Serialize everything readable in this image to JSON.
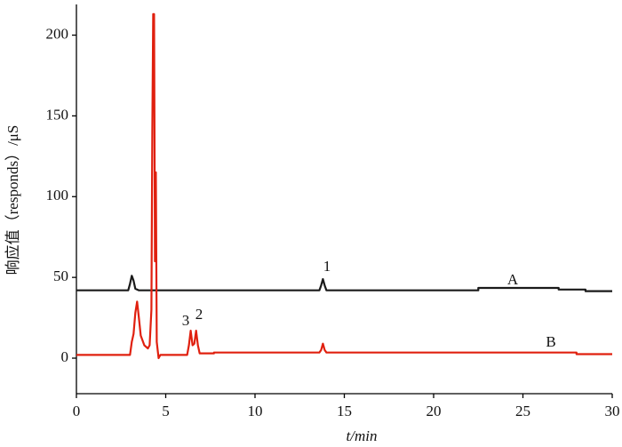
{
  "chart_data": {
    "type": "line",
    "y_label": "响应值（responds）/μS",
    "x_label": "t/min",
    "xlim": [
      0,
      30
    ],
    "xticks": [
      0,
      5,
      10,
      15,
      20,
      25,
      30
    ],
    "ylim": [
      -22,
      219
    ],
    "yticks": [
      0,
      50,
      100,
      150,
      200
    ],
    "annotations": [
      "1",
      "3",
      "2",
      "A",
      "B"
    ],
    "series": [
      {
        "color": "#1a1a1a",
        "x": [
          0,
          2.9,
          3.0,
          3.1,
          3.2,
          3.3,
          3.5,
          13.6,
          13.7,
          13.8,
          13.9,
          14.0,
          22.5,
          22.5,
          27,
          27,
          28.5,
          28.5,
          30
        ],
        "values": [
          42,
          42,
          46,
          51,
          48,
          43,
          42,
          42,
          45,
          49,
          45,
          42,
          42,
          43.5,
          43.5,
          42.5,
          42.5,
          41.5,
          41.5
        ]
      },
      {
        "color": "#e0200f",
        "x": [
          0,
          3.0,
          3.1,
          3.2,
          3.3,
          3.4,
          3.5,
          3.6,
          3.8,
          4.0,
          4.1,
          4.2,
          4.25,
          4.3,
          4.35,
          4.4,
          4.45,
          4.5,
          4.6,
          4.7,
          6.2,
          6.3,
          6.4,
          6.5,
          6.6,
          6.7,
          6.8,
          6.9,
          7.7,
          7.7,
          13.6,
          13.7,
          13.8,
          13.9,
          14.0,
          28,
          28,
          30
        ],
        "values": [
          2,
          2,
          10,
          15,
          28,
          35,
          25,
          14,
          8,
          6,
          8,
          30,
          140,
          213,
          213,
          60,
          115,
          10,
          0,
          2,
          2,
          8,
          17,
          8,
          9,
          17,
          8,
          3,
          3,
          3.5,
          3.5,
          5,
          9,
          5,
          3.5,
          3.5,
          2.5,
          2.5
        ]
      }
    ]
  }
}
